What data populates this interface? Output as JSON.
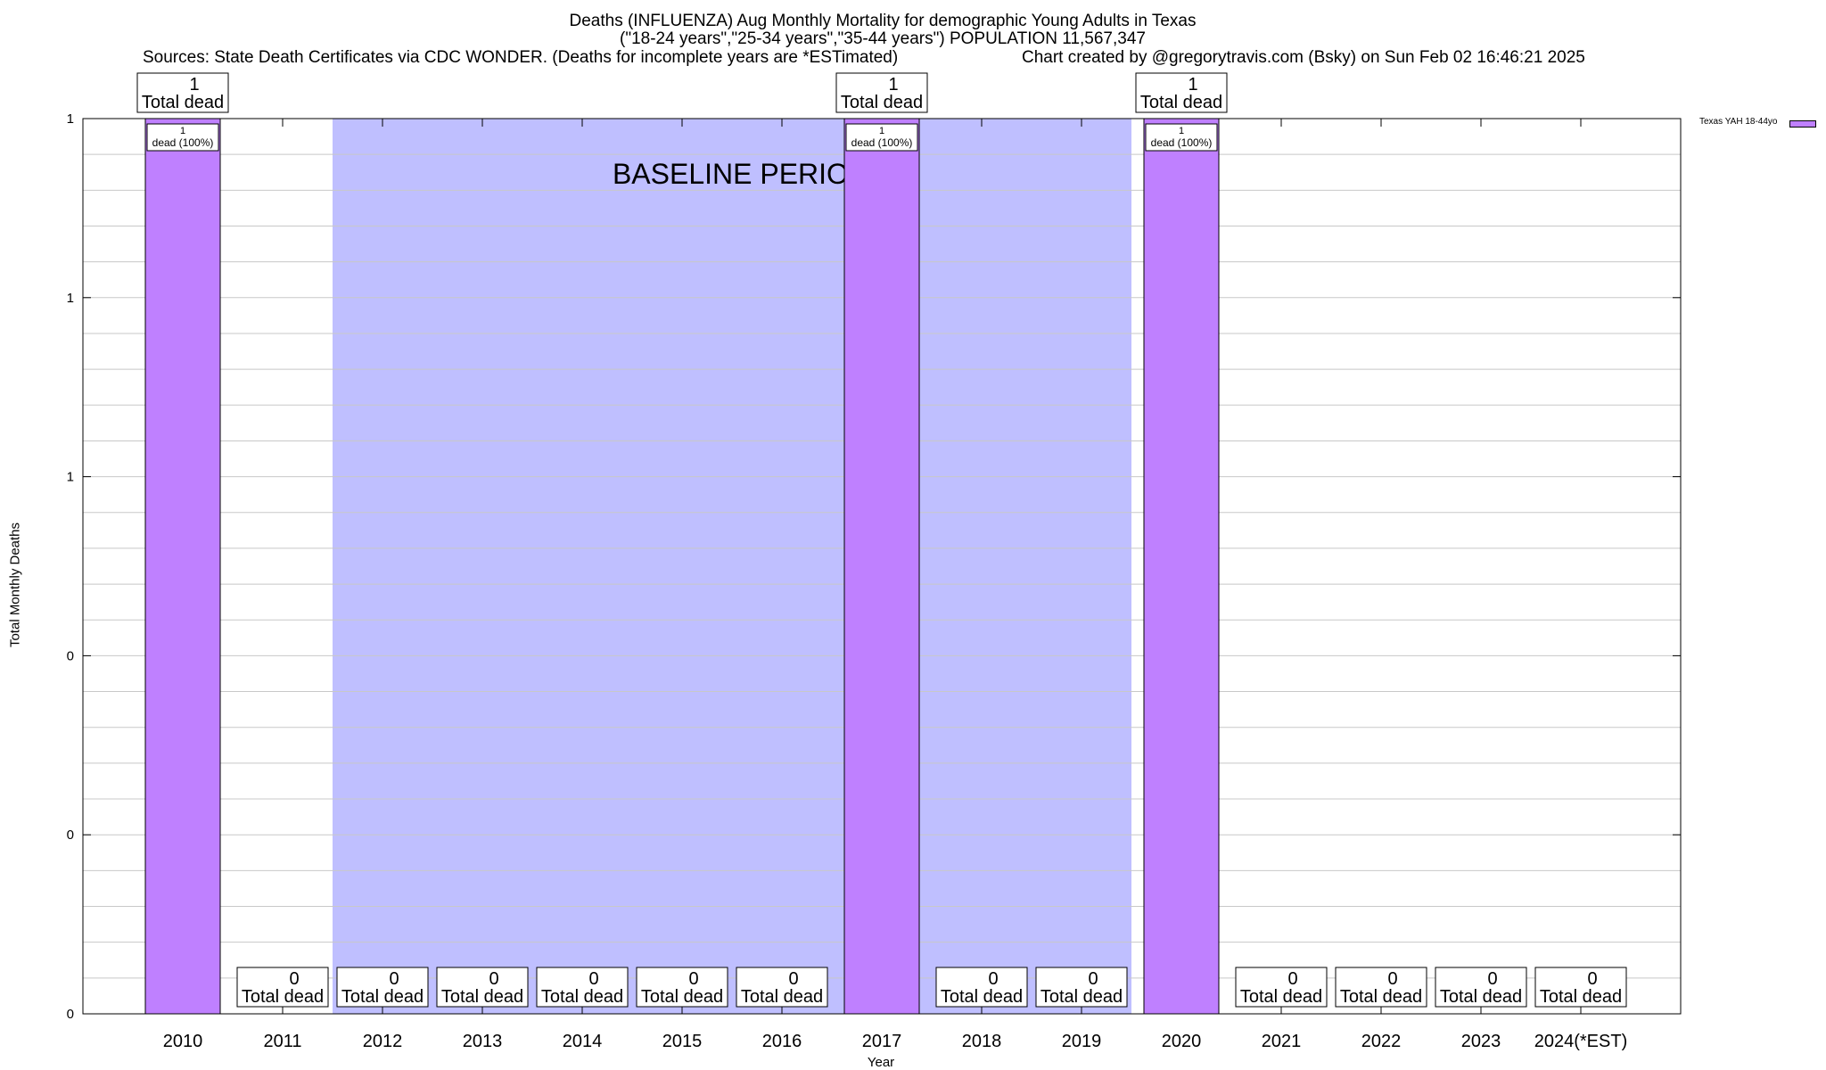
{
  "header": {
    "title": "Deaths (INFLUENZA) Aug Monthly Mortality for demographic Young Adults in Texas",
    "subtitle": "(\"18-24 years\",\"25-34 years\",\"35-44 years\") POPULATION 11,567,347",
    "sources": "Sources: State Death Certificates via CDC WONDER. (Deaths for incomplete years are *ESTimated)",
    "credit": "Chart created by @gregorytravis.com (Bsky) on Sun Feb 02 16:46:21 2025"
  },
  "chart_data": {
    "type": "bar",
    "title": "Deaths (INFLUENZA) Aug Monthly Mortality for demographic Young Adults in Texas",
    "xlabel": "Year",
    "ylabel": "Total Monthly Deaths",
    "categories": [
      "2010",
      "2011",
      "2012",
      "2013",
      "2014",
      "2015",
      "2016",
      "2017",
      "2018",
      "2019",
      "2020",
      "2021",
      "2022",
      "2023",
      "2024(*EST)"
    ],
    "series": [
      {
        "name": "Texas YAH 18-44yo",
        "color": "#bf80ff",
        "values": [
          1,
          0,
          0,
          0,
          0,
          0,
          0,
          1,
          0,
          0,
          1,
          0,
          0,
          0,
          0
        ]
      }
    ],
    "bar_labels": [
      "1\ndead (100%)",
      "",
      "",
      "",
      "",
      "",
      "",
      "1\ndead (100%)",
      "",
      "",
      "1\ndead (100%)",
      "",
      "",
      "",
      ""
    ],
    "total_labels": [
      "1\nTotal dead",
      "0\nTotal dead",
      "0\nTotal dead",
      "0\nTotal dead",
      "0\nTotal dead",
      "0\nTotal dead",
      "0\nTotal dead",
      "1\nTotal dead",
      "0\nTotal dead",
      "0\nTotal dead",
      "1\nTotal dead",
      "0\nTotal dead",
      "0\nTotal dead",
      "0\nTotal dead",
      "0\nTotal dead"
    ],
    "ylim": [
      0,
      1
    ],
    "yticks": [
      0,
      0.2,
      0.4,
      0.6,
      0.8,
      1
    ],
    "ytick_labels": [
      "0",
      "0",
      "0",
      "1",
      "1",
      "1"
    ],
    "baseline_period": {
      "label": "BASELINE PERIOD",
      "from": "2012",
      "to": "2019",
      "color": "#bfbfff"
    },
    "grid": true,
    "legend_position": "top-right"
  }
}
